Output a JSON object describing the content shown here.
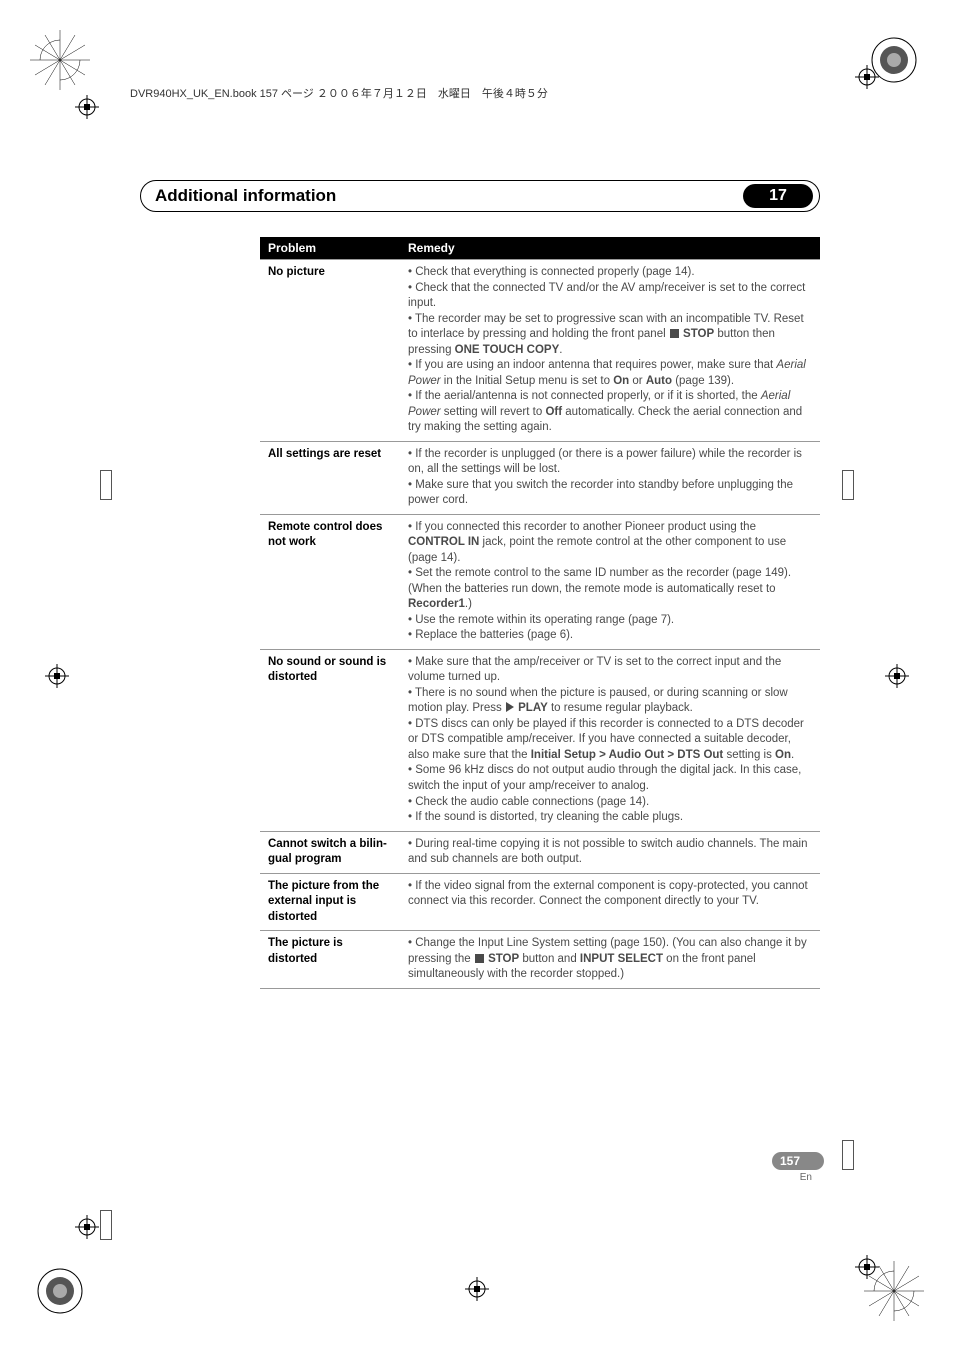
{
  "header_line": "DVR940HX_UK_EN.book  157 ページ  ２００６年７月１２日　水曜日　午後４時５分",
  "section_title": "Additional information",
  "chapter_number": "17",
  "table": {
    "headers": [
      "Problem",
      "Remedy"
    ],
    "rows": [
      {
        "problem": "No picture",
        "remedy": "• Check that everything is connected properly (page 14).<br>• Check that the connected TV and/or the AV amp/receiver is set to the correct input.<br>• The recorder may be set to progressive scan with an incompatible TV. Reset to interlace by pressing and holding the front panel <span class='stop-square'></span> <b>STOP</b> button then pressing <b>ONE TOUCH COPY</b>.<br>• If you are using an indoor antenna that requires power, make sure that <i>Aerial Power</i> in the Initial Setup menu is set to <b>On</b> or <b>Auto</b> (page 139).<br>• If the aerial/antenna is not connected properly, or if it is shorted, the <i>Aerial Power</i> setting will revert to <b>Off</b> automatically. Check the aerial connection and try making the setting again."
      },
      {
        "problem": "All settings are reset",
        "remedy": "• If the recorder is unplugged (or there is a power failure) while the recorder is on, all the settings will be lost.<br>• Make sure that you switch the recorder into standby before unplugging the power cord."
      },
      {
        "problem": "Remote control does not work",
        "remedy": "• If you connected this recorder to another Pioneer product using the <b>CONTROL IN</b> jack, point the remote control at the other component to use (page 14).<br>• Set the remote control to the same ID number as the recorder (page 149). (When the batteries run down, the remote mode is automatically reset to <b>Recorder1</b>.)<br>• Use the remote within its operating range (page 7).<br>• Replace the batteries (page 6)."
      },
      {
        "problem": "No sound or sound is distorted",
        "remedy": "• Make sure that the amp/receiver or TV is set to the correct input and the volume turned up.<br>• There is no sound when the picture is paused, or during scanning or slow motion play. Press <span class='play-triangle'></span> <b>PLAY</b> to resume regular playback.<br>• DTS discs can only be played if this recorder is connected to a DTS decoder or DTS compatible amp/receiver. If you have connected a suitable decoder, also make sure that the <b>Initial Setup > Audio Out > DTS Out</b> setting is <b>On</b>.<br>• Some 96 kHz discs do not output audio through the digital jack. In this case, switch the input of your amp/receiver to analog.<br>• Check the audio cable connections (page 14).<br>• If the sound is distorted, try cleaning the cable plugs."
      },
      {
        "problem": "Cannot switch a bilin-gual program",
        "remedy": "• During real-time copying it is not possible to switch audio channels. The main and sub channels are both output."
      },
      {
        "problem": "The picture from the external input is distorted",
        "remedy": "• If the video signal from the external component is copy-protected, you cannot connect via this recorder. Connect the component directly to your TV."
      },
      {
        "problem": "The picture is distorted",
        "remedy": "• Change the Input Line System setting (page 150). (You can also change it by pressing the <span class='stop-square'></span> <b>STOP</b> button and <b>INPUT SELECT</b> on the front panel simultaneously with the recorder stopped.)"
      }
    ]
  },
  "page_number": "157",
  "page_lang": "En",
  "colors": {
    "heading_bg": "#000000",
    "heading_fg": "#ffffff",
    "body_text": "#4a4a4a",
    "pill_bg": "#888888",
    "border": "#999999"
  }
}
